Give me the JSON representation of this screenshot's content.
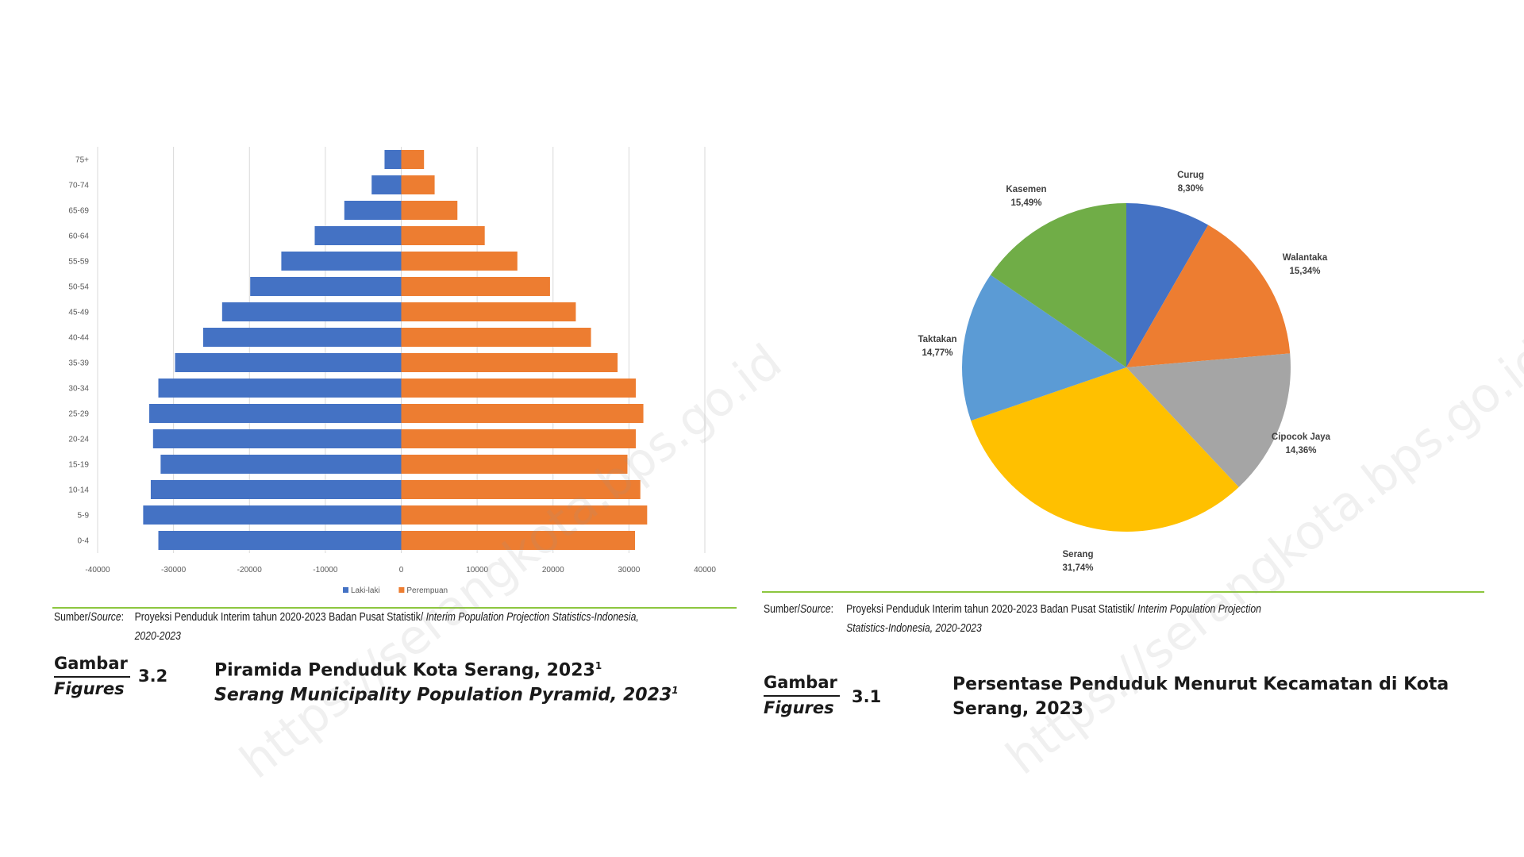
{
  "watermark": "https://serangkota.bps.go.id",
  "pyramid": {
    "source_label": "Sumber/",
    "source_label_italic": "Source",
    "source_colon": ":",
    "source_text": "Proyeksi Penduduk Interim tahun 2020-2023 Badan Pusat Statistik/ ",
    "source_text_italic": "Interim Population Projection Statistics-Indonesia, 2020-2023",
    "figure_word_id": "Gambar",
    "figure_word_en": "Figures",
    "figure_number": "3.2",
    "title_id": "Piramida Penduduk Kota Serang, 2023",
    "title_en": "Serang Municipality Population Pyramid, 2023",
    "title_sup": "1"
  },
  "pie": {
    "source_label": "Sumber/",
    "source_label_italic": "Source",
    "source_colon": ":",
    "source_text": "Proyeksi Penduduk Interim tahun 2020-2023 Badan Pusat Statistik/ ",
    "source_text_italic": "Interim Population Projection Statistics-Indonesia, 2020-2023",
    "figure_word_id": "Gambar",
    "figure_word_en": "Figures",
    "figure_number": "3.1",
    "title_line1": "Persentase Penduduk Menurut Kecamatan di Kota",
    "title_line2": "Serang, 2023"
  },
  "chart_data": [
    {
      "type": "bar",
      "orientation": "horizontal",
      "categories": [
        "0-4",
        "5-9",
        "10-14",
        "15-19",
        "20-24",
        "25-29",
        "30-34",
        "35-39",
        "40-44",
        "45-49",
        "50-54",
        "55-59",
        "60-64",
        "65-69",
        "70-74",
        "75+"
      ],
      "series": [
        {
          "name": "Laki-laki",
          "values": [
            -32000,
            -34000,
            -33000,
            -31700,
            -32700,
            -33200,
            -32000,
            -29800,
            -26100,
            -23600,
            -19900,
            -15800,
            -11400,
            -7500,
            -3900,
            -2200
          ],
          "color": "#4472c4"
        },
        {
          "name": "Perempuan",
          "values": [
            30800,
            32400,
            31500,
            29800,
            30900,
            31900,
            30900,
            28500,
            25000,
            23000,
            19600,
            15300,
            11000,
            7400,
            4400,
            3000
          ],
          "color": "#ed7d31"
        }
      ],
      "xlim": [
        -40000,
        40000
      ],
      "xticks": [
        "-40000",
        "-30000",
        "-20000",
        "-10000",
        "0",
        "10000",
        "20000",
        "30000",
        "40000"
      ],
      "grid": true,
      "legend": "bottom"
    },
    {
      "type": "pie",
      "labels": [
        "Curug",
        "Walantaka",
        "Cipocok Jaya",
        "Serang",
        "Taktakan",
        "Kasemen"
      ],
      "values": [
        8.3,
        15.34,
        14.36,
        31.74,
        14.77,
        15.49
      ],
      "value_labels": [
        "8,30%",
        "15,34%",
        "14,36%",
        "31,74%",
        "14,77%",
        "15,49%"
      ],
      "colors": [
        "#4472c4",
        "#ed7d31",
        "#a5a5a5",
        "#ffc000",
        "#5b9bd5",
        "#70ad47"
      ]
    }
  ]
}
